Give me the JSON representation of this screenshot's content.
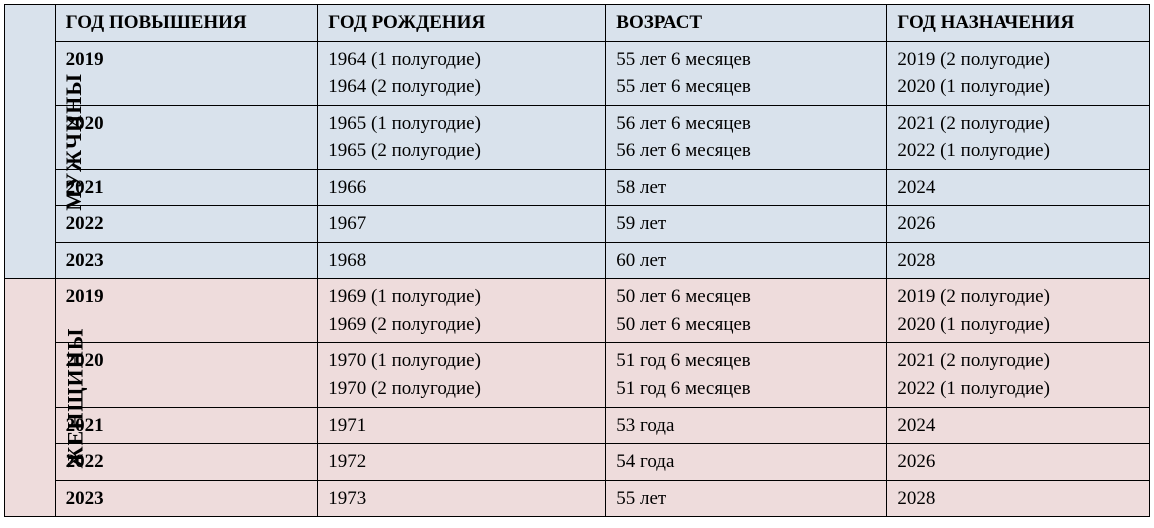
{
  "colors": {
    "men_bg": "#d9e2ec",
    "women_bg": "#eedcdc",
    "border": "#000000",
    "text": "#000000"
  },
  "columns": {
    "raise_year": "ГОД ПОВЫШЕНИЯ",
    "birth_year": "ГОД РОЖДЕНИЯ",
    "age": "ВОЗРАСТ",
    "assign_year": "ГОД НАЗНАЧЕНИЯ"
  },
  "sections": {
    "men": {
      "label": "МУЖЧИНЫ",
      "rows": [
        {
          "raise_year": "2019",
          "birth_year": "1964 (1 полугодие)\n1964 (2 полугодие)",
          "age": "55 лет 6 месяцев\n55 лет 6 месяцев",
          "assign_year": "2019 (2 полугодие)\n2020 (1 полугодие)"
        },
        {
          "raise_year": "2020",
          "birth_year": "1965 (1 полугодие)\n1965 (2 полугодие)",
          "age": "56 лет 6 месяцев\n56 лет 6 месяцев",
          "assign_year": "2021 (2 полугодие)\n2022 (1 полугодие)"
        },
        {
          "raise_year": "2021",
          "birth_year": "1966",
          "age": "58 лет",
          "assign_year": "2024"
        },
        {
          "raise_year": "2022",
          "birth_year": "1967",
          "age": "59 лет",
          "assign_year": "2026"
        },
        {
          "raise_year": "2023",
          "birth_year": "1968",
          "age": "60 лет",
          "assign_year": "2028"
        }
      ]
    },
    "women": {
      "label": "ЖЕНЩИНЫ",
      "rows": [
        {
          "raise_year": "2019",
          "birth_year": "1969 (1 полугодие)\n1969 (2 полугодие)",
          "age": "50 лет 6 месяцев\n50 лет 6 месяцев",
          "assign_year": "2019 (2 полугодие)\n2020 (1 полугодие)"
        },
        {
          "raise_year": "2020",
          "birth_year": "1970 (1 полугодие)\n1970 (2 полугодие)",
          "age": "51 год 6 месяцев\n51 год 6 месяцев",
          "assign_year": "2021 (2 полугодие)\n2022 (1 полугодие)"
        },
        {
          "raise_year": "2021",
          "birth_year": "1971",
          "age": "53 года",
          "assign_year": "2024"
        },
        {
          "raise_year": "2022",
          "birth_year": "1972",
          "age": "54 года",
          "assign_year": "2026"
        },
        {
          "raise_year": "2023",
          "birth_year": "1973",
          "age": "55 лет",
          "assign_year": "2028"
        }
      ]
    }
  }
}
